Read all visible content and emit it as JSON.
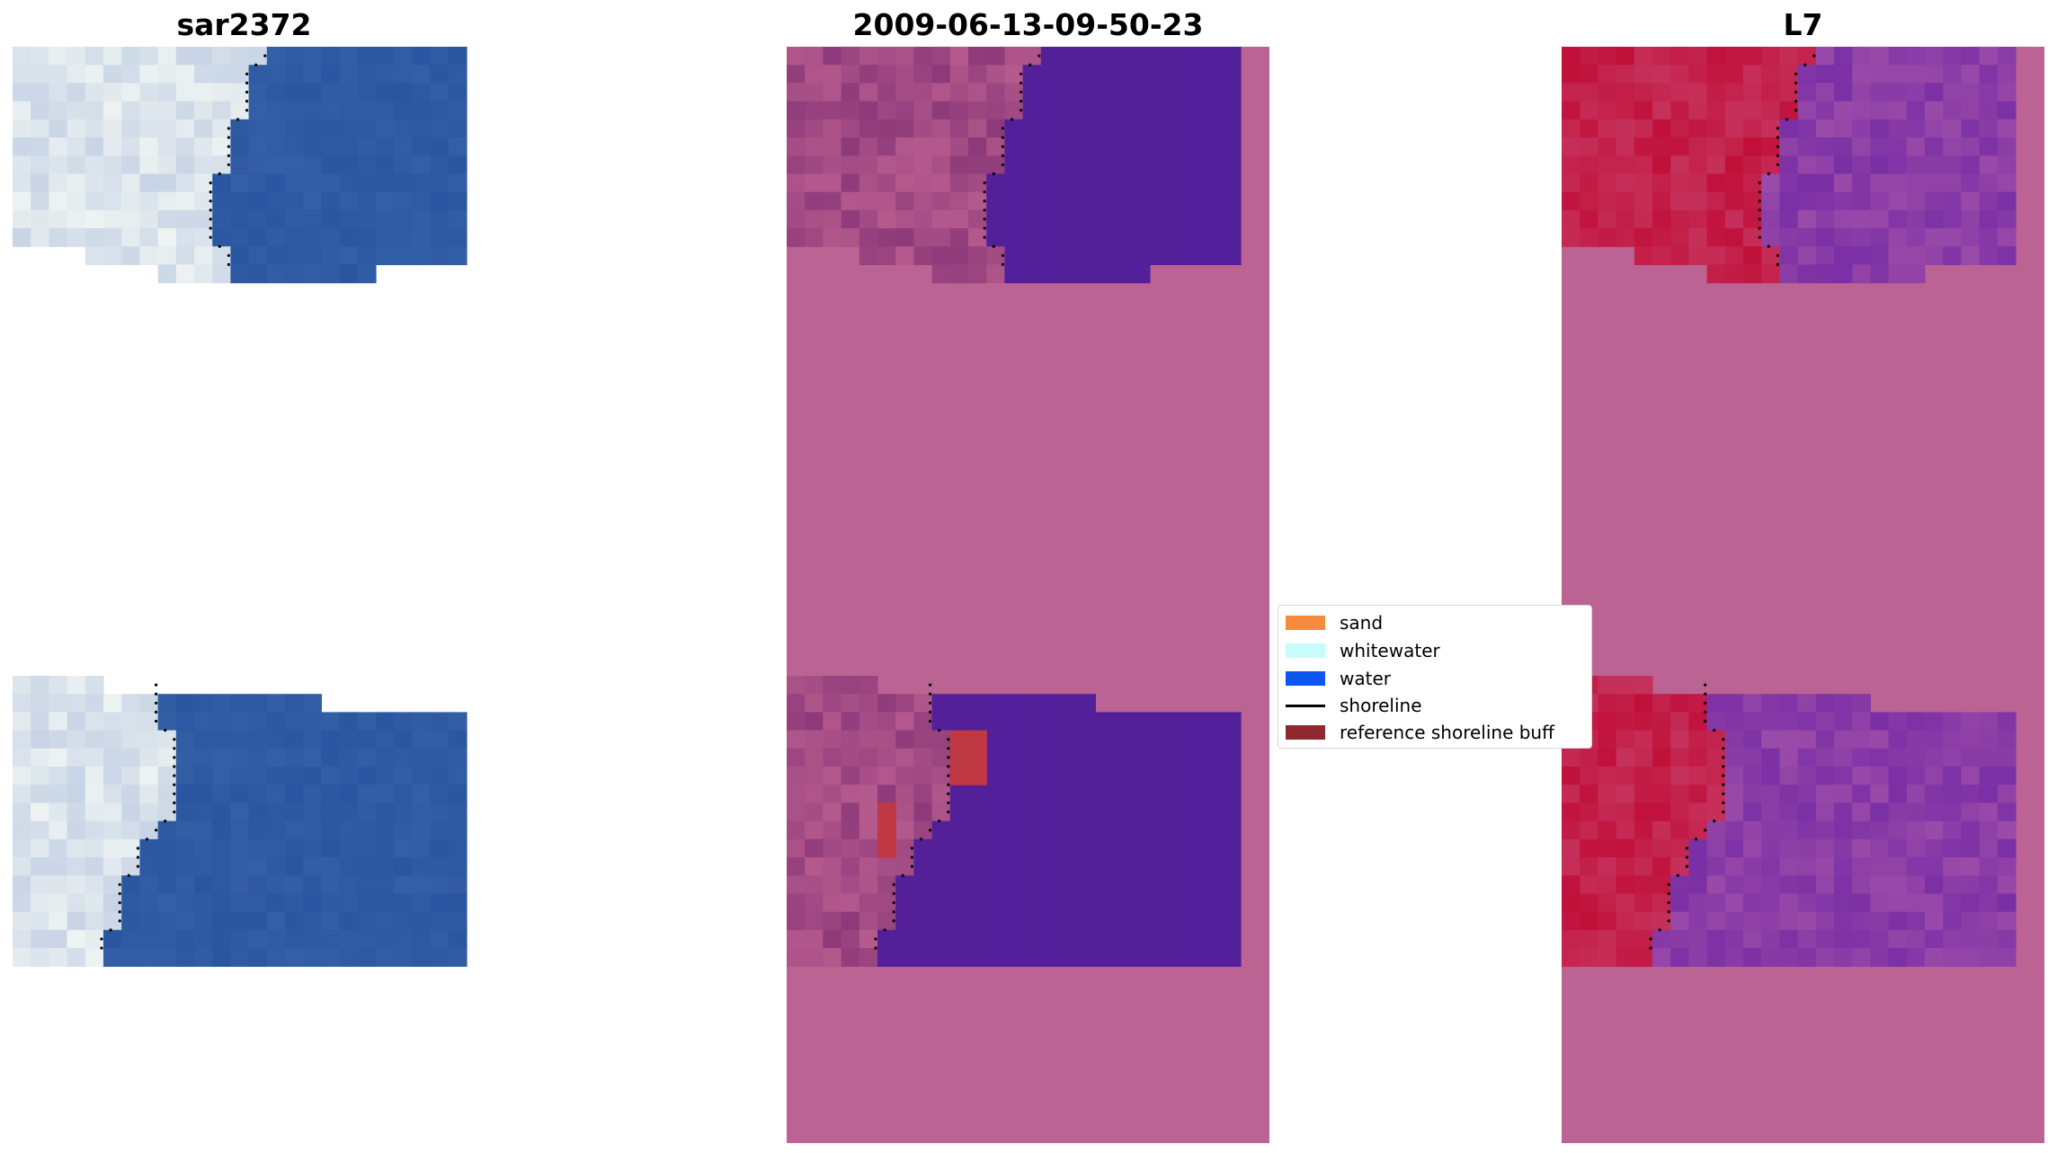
{
  "panels": [
    {
      "id": "rgb",
      "title": "sar2372"
    },
    {
      "id": "class",
      "title": "2009-06-13-09-50-23"
    },
    {
      "id": "mndwi",
      "title": "L7"
    }
  ],
  "legend": {
    "items": [
      {
        "label": "sand",
        "kind": "patch",
        "color": "#f78a3d"
      },
      {
        "label": "whitewater",
        "kind": "patch",
        "color": "#c8fbfb"
      },
      {
        "label": "water",
        "kind": "patch",
        "color": "#0b57f0"
      },
      {
        "label": "shoreline",
        "kind": "line",
        "color": "#000000"
      },
      {
        "label": "reference shoreline buff",
        "kind": "patch",
        "color": "#8e2a2f"
      }
    ]
  },
  "colors": {
    "nodata_pink": "#bb6494",
    "water_purple": "#53209a",
    "buffer_red": "#c03843",
    "rgb_water": "#2a55a0",
    "mndwi_land": "#c0103a",
    "mndwi_water": "#7a2fa5",
    "shoreline_dots": "#000000"
  }
}
